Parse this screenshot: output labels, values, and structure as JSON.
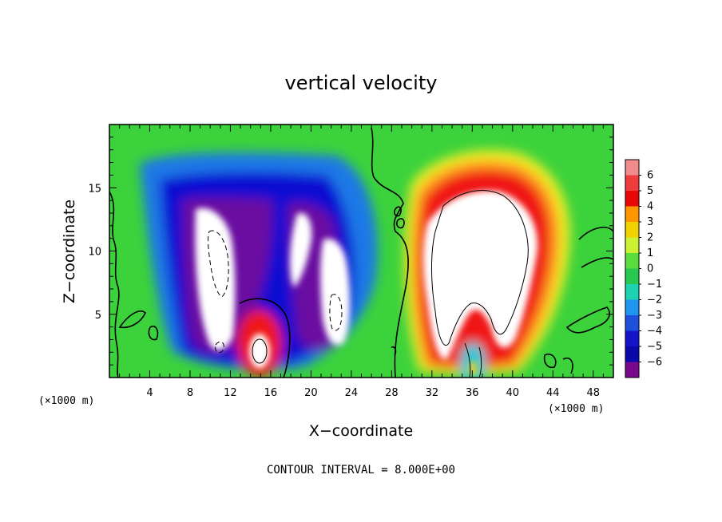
{
  "chart_data": {
    "type": "heatmap",
    "title": "vertical velocity",
    "xlabel": "X−coordinate",
    "ylabel": "Z−coordinate",
    "x_unit": "(×1000 m)",
    "z_unit": "(×1000 m)",
    "xlim": [
      0,
      50
    ],
    "ylim": [
      0,
      20
    ],
    "x_ticks": [
      "4",
      "8",
      "12",
      "16",
      "20",
      "24",
      "28",
      "32",
      "36",
      "40",
      "44",
      "48"
    ],
    "y_ticks": [
      "5",
      "10",
      "15"
    ],
    "colorbar": {
      "min": -6,
      "max": 6,
      "labels": [
        "6",
        "5",
        "4",
        "3",
        "2",
        "1",
        "0",
        "−1",
        "−2",
        "−3",
        "−4",
        "−5",
        "−6"
      ]
    },
    "contour_note": "CONTOUR INTERVAL = 8.000E+00",
    "features": [
      {
        "kind": "updraft",
        "x": 37,
        "z": 10,
        "peak": "> 6"
      },
      {
        "kind": "updraft",
        "x": 14.5,
        "z": 2,
        "peak": "> 6"
      },
      {
        "kind": "downdraft",
        "x": 11,
        "z": 9,
        "peak": "< -6"
      },
      {
        "kind": "downdraft",
        "x": 19,
        "z": 10,
        "peak": "< -6"
      },
      {
        "kind": "downdraft",
        "x": 22.5,
        "z": 7,
        "peak": "< -6"
      }
    ]
  }
}
